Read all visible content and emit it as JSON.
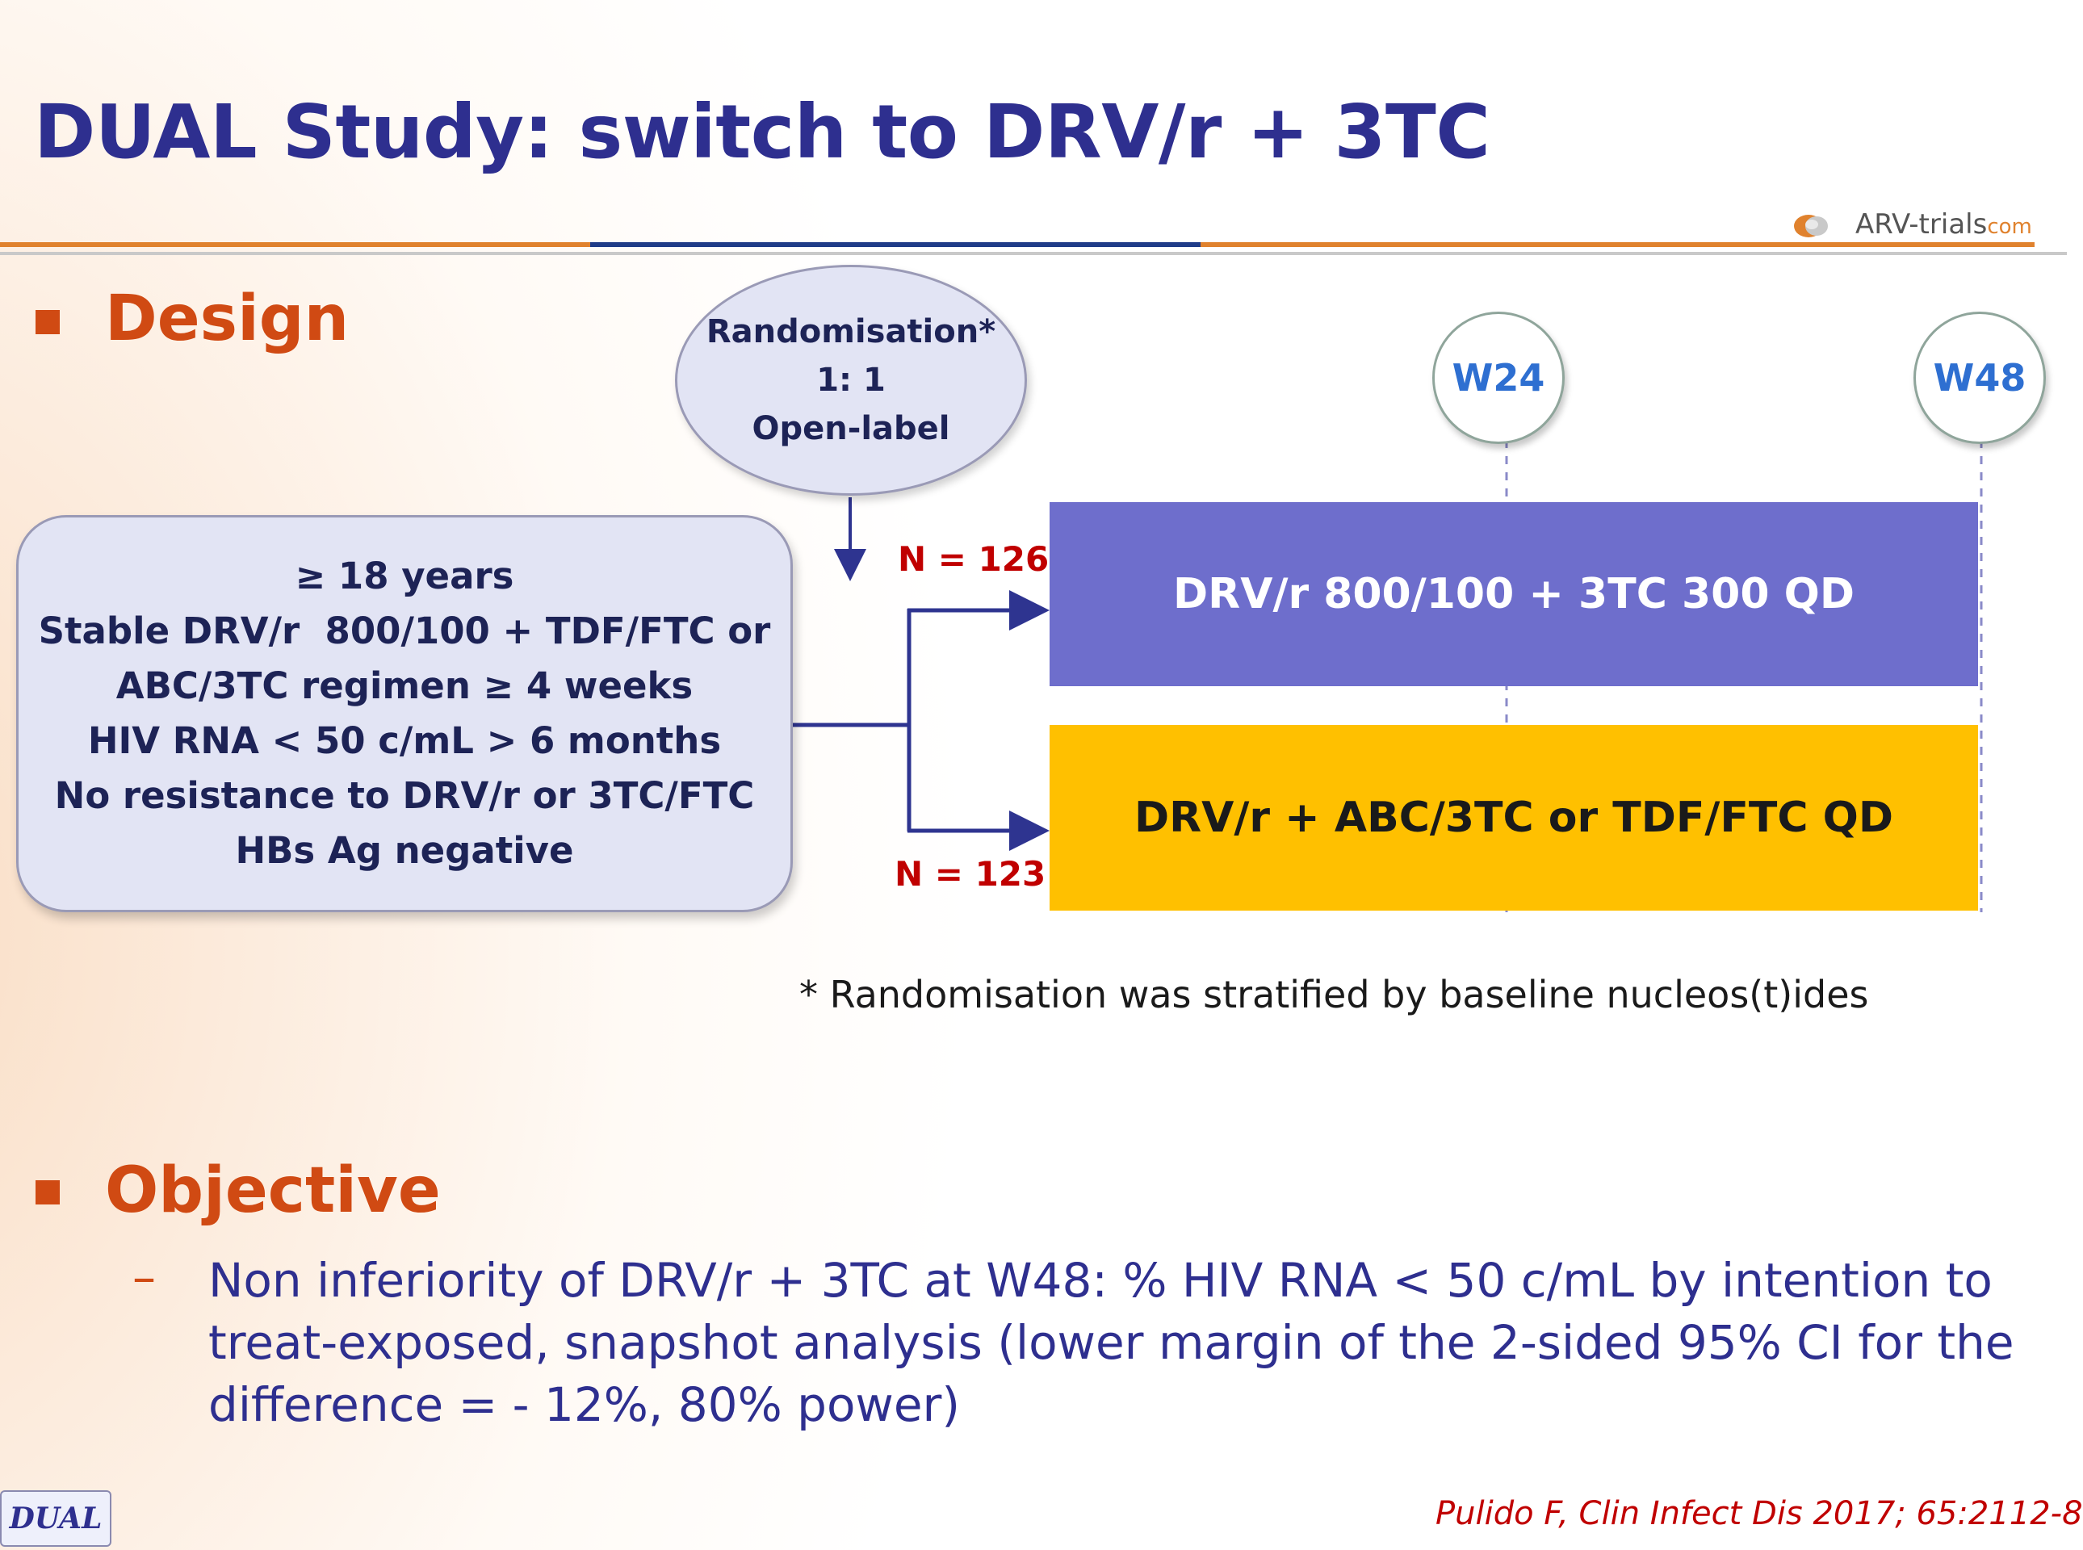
{
  "title": "DUAL Study: switch to DRV/r + 3TC",
  "logo": {
    "text": "ARV-trials",
    "suffix": "com"
  },
  "design": {
    "heading": "Design",
    "randomisation": {
      "line1": "Randomisation*",
      "line2": "1: 1",
      "line3": "Open-label"
    },
    "criteria": [
      "≥ 18 years",
      "Stable DRV/r  800/100 + TDF/FTC or",
      "ABC/3TC regimen ≥ 4 weeks",
      "HIV RNA < 50 c/mL > 6 months",
      "No resistance to DRV/r or 3TC/FTC",
      "HBs Ag negative"
    ],
    "timepoints": [
      "W24",
      "W48"
    ],
    "arms": [
      {
        "label": "DRV/r 800/100 + 3TC 300 QD",
        "n": "N = 126",
        "color": "#6e6ecc"
      },
      {
        "label": "DRV/r + ABC/3TC or TDF/FTC QD",
        "n": "N = 123",
        "color": "#ffc000"
      }
    ],
    "footnote": "* Randomisation was stratified by baseline nucleos(t)ides"
  },
  "objective": {
    "heading": "Objective",
    "dash": "–",
    "lines": [
      "Non inferiority of DRV/r + 3TC at W48: % HIV RNA < 50 c/mL by intention to",
      "treat-exposed, snapshot analysis (lower margin of the 2-sided 95% CI for the",
      "difference = - 12%, 80% power)"
    ]
  },
  "footer": {
    "tag": "DUAL",
    "citation": "Pulido F, Clin Infect Dis 2017; 65:2112-8"
  },
  "colors": {
    "title": "#2e2f8f",
    "accent": "#d04a13",
    "box": "#e2e4f4"
  }
}
